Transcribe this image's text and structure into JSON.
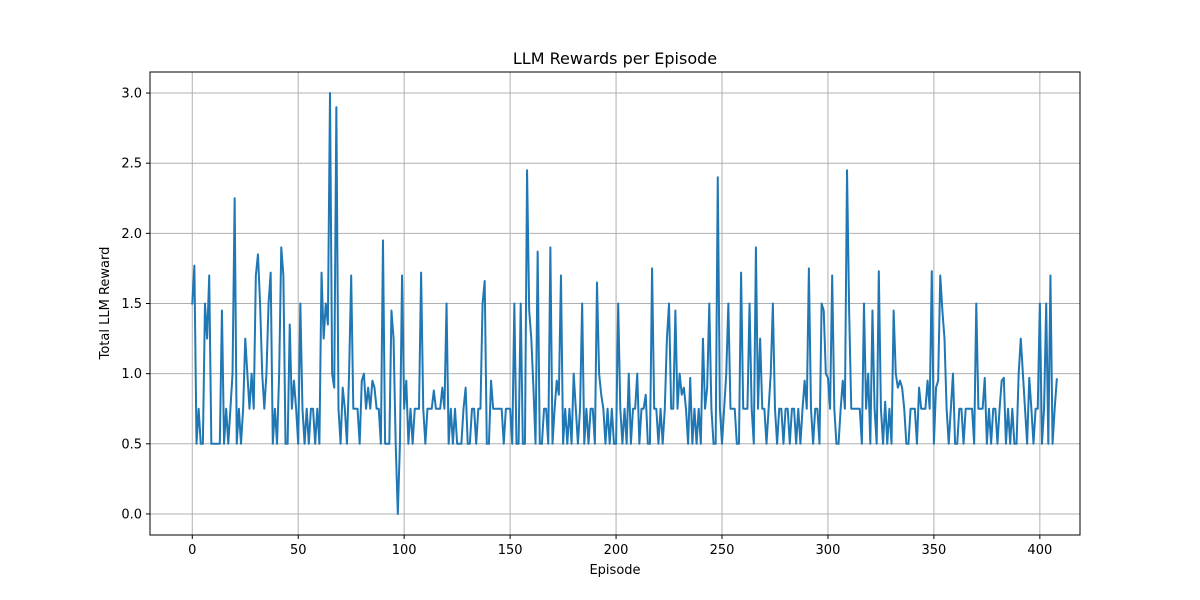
{
  "chart_data": {
    "type": "line",
    "title": "LLM Rewards per Episode",
    "xlabel": "Episode",
    "ylabel": "Total LLM Reward",
    "xlim": [
      -19.95,
      418.95
    ],
    "ylim": [
      -0.15,
      3.15
    ],
    "xticks": [
      0,
      50,
      100,
      150,
      200,
      250,
      300,
      350,
      400
    ],
    "yticks": [
      0.0,
      0.5,
      1.0,
      1.5,
      2.0,
      2.5,
      3.0
    ],
    "xtick_labels": [
      "0",
      "50",
      "100",
      "150",
      "200",
      "250",
      "300",
      "350",
      "400"
    ],
    "ytick_labels": [
      "0.0",
      "0.5",
      "1.0",
      "1.5",
      "2.0",
      "2.5",
      "3.0"
    ],
    "grid": true,
    "series": [
      {
        "color": "#1f77b4",
        "x_start": 0,
        "x_step": 1,
        "values": [
          1.5,
          1.77,
          0.5,
          0.75,
          0.5,
          0.5,
          1.5,
          1.25,
          1.7,
          0.5,
          0.5,
          0.5,
          0.5,
          0.5,
          1.45,
          0.5,
          0.75,
          0.5,
          0.75,
          1.0,
          2.25,
          0.5,
          0.75,
          0.5,
          0.75,
          1.25,
          1.0,
          0.75,
          1.0,
          0.75,
          1.7,
          1.85,
          1.5,
          1.0,
          0.75,
          1.0,
          1.5,
          1.72,
          0.5,
          0.75,
          0.5,
          1.0,
          1.9,
          1.7,
          0.5,
          0.5,
          1.35,
          0.75,
          0.95,
          0.75,
          0.5,
          1.5,
          0.75,
          0.5,
          0.75,
          0.5,
          0.75,
          0.75,
          0.5,
          0.75,
          0.5,
          1.72,
          1.25,
          1.5,
          1.35,
          3.0,
          1.0,
          0.9,
          2.9,
          0.75,
          0.5,
          0.9,
          0.75,
          0.5,
          1.0,
          1.7,
          0.75,
          0.75,
          0.75,
          0.5,
          0.95,
          1.0,
          0.75,
          0.9,
          0.75,
          0.95,
          0.9,
          0.75,
          0.75,
          0.5,
          1.95,
          0.5,
          0.5,
          0.5,
          1.45,
          1.25,
          0.5,
          0.0,
          0.5,
          1.7,
          0.75,
          0.95,
          0.5,
          0.75,
          0.5,
          0.75,
          0.75,
          0.75,
          1.72,
          0.75,
          0.5,
          0.75,
          0.75,
          0.75,
          0.88,
          0.75,
          0.75,
          0.75,
          0.9,
          0.75,
          1.5,
          0.5,
          0.75,
          0.5,
          0.75,
          0.5,
          0.5,
          0.5,
          0.75,
          0.9,
          0.5,
          0.5,
          0.75,
          0.75,
          0.5,
          0.75,
          0.75,
          1.5,
          1.66,
          0.5,
          0.5,
          0.95,
          0.75,
          0.75,
          0.75,
          0.75,
          0.75,
          0.5,
          0.75,
          0.75,
          0.75,
          0.5,
          1.5,
          0.5,
          0.5,
          1.5,
          0.5,
          0.5,
          2.45,
          1.45,
          1.25,
          0.9,
          0.5,
          1.87,
          0.5,
          0.5,
          0.75,
          0.75,
          0.5,
          1.9,
          0.5,
          0.75,
          0.95,
          0.85,
          1.7,
          0.5,
          0.75,
          0.5,
          0.75,
          0.5,
          1.0,
          0.75,
          0.5,
          0.75,
          1.5,
          0.5,
          0.75,
          0.5,
          0.75,
          0.75,
          0.5,
          1.65,
          1.0,
          0.85,
          0.75,
          0.5,
          0.75,
          0.5,
          0.75,
          0.5,
          0.5,
          1.5,
          0.75,
          0.5,
          0.75,
          0.5,
          1.0,
          0.5,
          0.75,
          0.75,
          1.0,
          0.5,
          0.75,
          0.75,
          0.85,
          0.5,
          0.5,
          1.75,
          0.75,
          0.75,
          0.5,
          0.75,
          0.5,
          0.75,
          1.25,
          1.5,
          0.75,
          0.75,
          1.45,
          0.75,
          1.0,
          0.85,
          0.9,
          0.75,
          0.5,
          0.97,
          0.5,
          0.75,
          0.5,
          0.75,
          0.5,
          1.25,
          0.75,
          0.9,
          1.5,
          0.75,
          0.5,
          0.5,
          2.4,
          0.75,
          0.5,
          0.75,
          1.0,
          1.5,
          0.75,
          0.75,
          0.75,
          0.5,
          0.5,
          1.72,
          0.75,
          0.75,
          0.75,
          1.5,
          0.75,
          0.5,
          1.9,
          0.75,
          1.25,
          0.75,
          0.75,
          0.5,
          0.75,
          1.0,
          1.5,
          0.75,
          0.5,
          0.75,
          0.75,
          0.5,
          0.75,
          0.75,
          0.5,
          0.75,
          0.75,
          0.5,
          0.75,
          0.5,
          0.75,
          0.95,
          0.75,
          1.75,
          0.75,
          0.5,
          0.75,
          0.75,
          0.5,
          1.5,
          1.45,
          1.0,
          0.97,
          0.75,
          1.7,
          0.75,
          0.5,
          0.5,
          0.75,
          0.95,
          0.75,
          2.45,
          1.45,
          0.75,
          0.75,
          0.75,
          0.75,
          0.75,
          0.5,
          1.5,
          0.75,
          1.0,
          0.5,
          1.45,
          0.75,
          0.5,
          1.73,
          0.75,
          0.5,
          0.8,
          0.5,
          0.75,
          0.5,
          1.45,
          1.0,
          0.9,
          0.95,
          0.9,
          0.75,
          0.5,
          0.5,
          0.75,
          0.75,
          0.75,
          0.5,
          0.9,
          0.75,
          0.75,
          0.75,
          0.95,
          0.75,
          1.73,
          0.5,
          0.9,
          0.95,
          1.7,
          1.45,
          1.25,
          0.75,
          0.5,
          0.75,
          1.0,
          0.5,
          0.5,
          0.75,
          0.75,
          0.5,
          0.75,
          0.75,
          0.75,
          0.75,
          0.5,
          1.5,
          0.75,
          0.75,
          0.75,
          0.97,
          0.5,
          0.75,
          0.5,
          0.75,
          0.75,
          0.5,
          0.75,
          0.95,
          0.97,
          0.5,
          0.75,
          0.5,
          0.75,
          0.5,
          0.5,
          1.0,
          1.25,
          1.0,
          0.75,
          0.5,
          0.97,
          0.75,
          0.5,
          0.75,
          0.75,
          1.5,
          0.5,
          0.75,
          1.5,
          0.5,
          1.7,
          0.5,
          0.75,
          0.96
        ]
      }
    ]
  }
}
